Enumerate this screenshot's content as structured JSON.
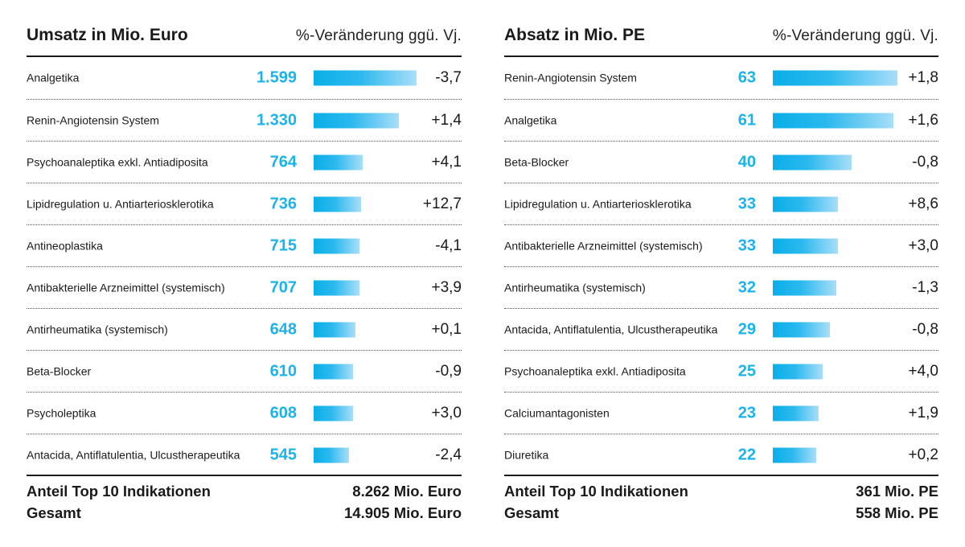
{
  "chart_data": [
    {
      "type": "bar",
      "title": "Umsatz in Mio. Euro",
      "subtitle": "%-Veränderung ggü. Vj.",
      "categories": [
        "Analgetika",
        "Renin-Angiotensin System",
        "Psychoanaleptika exkl. Antiadiposita",
        "Lipidregulation u. Antiarteriosklerotika",
        "Antineoplastika",
        "Antibakterielle Arzneimittel (systemisch)",
        "Antirheumatika (systemisch)",
        "Beta-Blocker",
        "Psycholeptika",
        "Antacida, Antiflatulentia, Ulcustherapeutika"
      ],
      "values": [
        1599,
        1330,
        764,
        736,
        715,
        707,
        648,
        610,
        608,
        545
      ],
      "value_labels": [
        "1.599",
        "1.330",
        "764",
        "736",
        "715",
        "707",
        "648",
        "610",
        "608",
        "545"
      ],
      "changes": [
        "-3,7",
        "+1,4",
        "+4,1",
        "+12,7",
        "-4,1",
        "+3,9",
        "+0,1",
        "-0,9",
        "+3,0",
        "-2,4"
      ],
      "footer": [
        {
          "label": "Anteil Top 10 Indikationen",
          "value": "8.262 Mio. Euro"
        },
        {
          "label": "Gesamt",
          "value": "14.905 Mio. Euro"
        }
      ]
    },
    {
      "type": "bar",
      "title": "Absatz in Mio. PE",
      "subtitle": "%-Veränderung ggü. Vj.",
      "categories": [
        "Renin-Angiotensin System",
        "Analgetika",
        "Beta-Blocker",
        "Lipidregulation u. Antiarteriosklerotika",
        "Antibakterielle Arzneimittel (systemisch)",
        "Antirheumatika (systemisch)",
        "Antacida, Antiflatulentia, Ulcustherapeutika",
        "Psychoanaleptika exkl. Antiadiposita",
        "Calciumantagonisten",
        "Diuretika"
      ],
      "values": [
        63,
        61,
        40,
        33,
        33,
        32,
        29,
        25,
        23,
        22
      ],
      "value_labels": [
        "63",
        "61",
        "40",
        "33",
        "33",
        "32",
        "29",
        "25",
        "23",
        "22"
      ],
      "changes": [
        "+1,8",
        "+1,6",
        "-0,8",
        "+8,6",
        "+3,0",
        "-1,3",
        "-0,8",
        "+4,0",
        "+1,9",
        "+0,2"
      ],
      "footer": [
        {
          "label": "Anteil Top 10 Indikationen",
          "value": "361 Mio. PE"
        },
        {
          "label": "Gesamt",
          "value": "558 Mio. PE"
        }
      ]
    }
  ],
  "colors": {
    "value_text": "#1ab3ea",
    "bar_start": "#0aaee8",
    "bar_end": "#a8def8",
    "text": "#1a1a1a"
  }
}
